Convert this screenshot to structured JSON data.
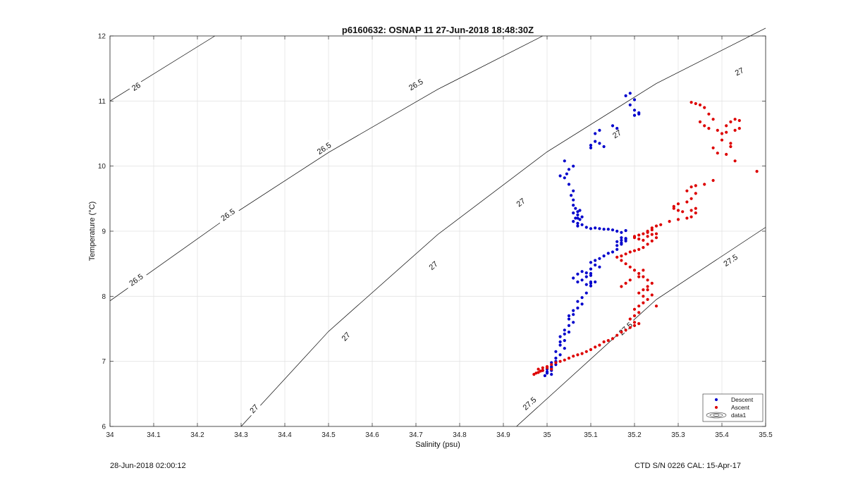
{
  "footer": {
    "timestamp": "28-Jun-2018 02:00:12",
    "instrument": "CTD S/N 0226  CAL: 15-Apr-17"
  },
  "chart_data": {
    "type": "scatter",
    "title": "p6160632: OSNAP 11 27-Jun-2018 18:48:30Z",
    "xlabel": "Salinity (psu)",
    "ylabel": "Temperature (°C)",
    "xlim": [
      34,
      35.5
    ],
    "ylim": [
      6,
      12
    ],
    "grid": true,
    "x_ticks": [
      "34",
      "34.1",
      "34.2",
      "34.3",
      "34.4",
      "34.5",
      "34.6",
      "34.7",
      "34.8",
      "34.9",
      "35",
      "35.1",
      "35.2",
      "35.3",
      "35.4",
      "35.5"
    ],
    "y_ticks": [
      "6",
      "7",
      "8",
      "9",
      "10",
      "11",
      "12"
    ],
    "legend_position": "bottom-right",
    "legend": [
      "Descent",
      "Ascent",
      "data1"
    ],
    "colors": {
      "descent": "#0000cc",
      "ascent": "#dd0000",
      "contour": "#000000"
    },
    "contours": [
      {
        "label": "26",
        "points": [
          [
            34.0,
            11.0
          ],
          [
            34.24,
            12.0
          ]
        ],
        "label_positions": [
          [
            34.06,
            11.22
          ]
        ]
      },
      {
        "label": "26.5",
        "points": [
          [
            34.0,
            7.93
          ],
          [
            34.25,
            9.12
          ],
          [
            34.5,
            10.21
          ],
          [
            34.75,
            11.18
          ],
          [
            34.99,
            12.0
          ]
        ],
        "label_positions": [
          [
            34.06,
            8.25
          ],
          [
            34.27,
            9.25
          ],
          [
            34.49,
            10.27
          ],
          [
            34.7,
            11.25
          ]
        ]
      },
      {
        "label": "27",
        "points": [
          [
            34.3,
            6.0
          ],
          [
            34.5,
            7.46
          ],
          [
            34.75,
            8.95
          ],
          [
            35.0,
            10.22
          ],
          [
            35.25,
            11.27
          ],
          [
            35.5,
            12.12
          ]
        ],
        "label_positions": [
          [
            34.33,
            6.27
          ],
          [
            34.54,
            7.38
          ],
          [
            34.74,
            8.47
          ],
          [
            34.94,
            9.44
          ],
          [
            35.16,
            10.49
          ],
          [
            35.44,
            11.45
          ]
        ]
      },
      {
        "label": "27.5",
        "points": [
          [
            34.93,
            6.0
          ],
          [
            35.25,
            7.95
          ],
          [
            35.5,
            9.06
          ]
        ],
        "label_positions": [
          [
            34.96,
            6.35
          ],
          [
            35.18,
            7.5
          ],
          [
            35.42,
            8.55
          ]
        ]
      }
    ],
    "series": [
      {
        "name": "Descent",
        "marker": "dot",
        "x": [
          35.19,
          35.2,
          35.19,
          35.18,
          35.2,
          35.21,
          35.2,
          35.21,
          35.16,
          35.15,
          35.13,
          35.12,
          35.11,
          35.1,
          35.11,
          35.12,
          35.1,
          35.05,
          35.06,
          35.04,
          35.03,
          35.04,
          35.045,
          35.05,
          35.06,
          35.055,
          35.06,
          35.06,
          35.065,
          35.07,
          35.06,
          35.07,
          35.065,
          35.075,
          35.06,
          35.07,
          35.08,
          35.075,
          35.07,
          35.07,
          35.08,
          35.09,
          35.1,
          35.11,
          35.12,
          35.13,
          35.14,
          35.15,
          35.16,
          35.17,
          35.18,
          35.18,
          35.17,
          35.16,
          35.17,
          35.18,
          35.18,
          35.17,
          35.16,
          35.17,
          35.16,
          35.15,
          35.14,
          35.13,
          35.12,
          35.11,
          35.1,
          35.11,
          35.12,
          35.1,
          35.1,
          35.09,
          35.1,
          35.1,
          35.09,
          35.08,
          35.07,
          35.06,
          35.07,
          35.08,
          35.09,
          35.1,
          35.1,
          35.11,
          35.09,
          35.08,
          35.07,
          35.08,
          35.07,
          35.06,
          35.06,
          35.05,
          35.05,
          35.06,
          35.05,
          35.04,
          35.05,
          35.04,
          35.03,
          35.04,
          35.03,
          35.03,
          35.04,
          35.02,
          35.03,
          35.02,
          35.02,
          35.01,
          35.02,
          35.01,
          35.0,
          35.01,
          35.0,
          35.0,
          35.01,
          34.995,
          35.0,
          34.99,
          35.01
        ],
        "y": [
          11.12,
          11.02,
          10.94,
          11.08,
          10.86,
          10.82,
          10.78,
          10.8,
          10.58,
          10.62,
          10.3,
          10.35,
          10.5,
          10.28,
          10.38,
          10.55,
          10.32,
          9.95,
          10.0,
          10.08,
          9.85,
          9.82,
          9.88,
          9.72,
          9.62,
          9.55,
          9.48,
          9.4,
          9.35,
          9.3,
          9.28,
          9.25,
          9.2,
          9.32,
          9.15,
          9.2,
          9.22,
          9.18,
          9.12,
          9.08,
          9.1,
          9.06,
          9.04,
          9.05,
          9.04,
          9.03,
          9.03,
          9.02,
          9.0,
          8.98,
          9.01,
          8.88,
          8.86,
          8.84,
          8.82,
          8.85,
          8.89,
          8.8,
          8.78,
          8.9,
          8.72,
          8.68,
          8.66,
          8.62,
          8.58,
          8.55,
          8.52,
          8.48,
          8.45,
          8.42,
          8.35,
          8.3,
          8.22,
          8.16,
          8.18,
          8.25,
          8.22,
          8.28,
          8.34,
          8.38,
          8.36,
          8.32,
          8.2,
          8.22,
          8.05,
          7.98,
          7.92,
          7.88,
          7.82,
          7.78,
          7.72,
          7.7,
          7.65,
          7.6,
          7.55,
          7.48,
          7.45,
          7.42,
          7.38,
          7.32,
          7.3,
          7.25,
          7.2,
          7.15,
          7.1,
          7.05,
          7.0,
          6.98,
          6.95,
          6.92,
          6.88,
          6.86,
          6.84,
          6.82,
          6.8,
          6.78,
          6.82,
          6.86,
          6.9
        ]
      },
      {
        "name": "Ascent",
        "marker": "dot",
        "x": [
          35.33,
          35.34,
          35.35,
          35.36,
          35.37,
          35.38,
          35.35,
          35.36,
          35.37,
          35.39,
          35.4,
          35.41,
          35.42,
          35.43,
          35.44,
          35.4,
          35.38,
          35.39,
          35.41,
          35.42,
          35.43,
          35.42,
          35.41,
          35.44,
          35.48,
          35.43,
          35.38,
          35.36,
          35.34,
          35.33,
          35.32,
          35.34,
          35.33,
          35.32,
          35.3,
          35.29,
          35.29,
          35.3,
          35.31,
          35.33,
          35.34,
          35.34,
          35.33,
          35.32,
          35.3,
          35.28,
          35.26,
          35.25,
          35.24,
          35.24,
          35.23,
          35.23,
          35.22,
          35.21,
          35.2,
          35.2,
          35.21,
          35.22,
          35.23,
          35.24,
          35.25,
          35.25,
          35.24,
          35.23,
          35.22,
          35.21,
          35.2,
          35.19,
          35.18,
          35.17,
          35.16,
          35.17,
          35.18,
          35.19,
          35.2,
          35.21,
          35.22,
          35.23,
          35.24,
          35.23,
          35.22,
          35.21,
          35.22,
          35.23,
          35.22,
          35.21,
          35.2,
          35.21,
          35.2,
          35.19,
          35.2,
          35.21,
          35.2,
          35.19,
          35.18,
          35.17,
          35.16,
          35.15,
          35.14,
          35.13,
          35.12,
          35.11,
          35.1,
          35.09,
          35.08,
          35.07,
          35.06,
          35.05,
          35.04,
          35.03,
          35.02,
          35.01,
          35.0,
          34.99,
          34.98,
          34.985,
          34.975,
          34.97,
          34.98,
          34.99,
          35.0,
          35.01,
          35.17,
          35.18,
          35.19,
          35.21,
          35.23,
          35.24,
          35.25,
          35.22
        ],
        "y": [
          10.98,
          10.96,
          10.94,
          10.9,
          10.8,
          10.72,
          10.68,
          10.62,
          10.58,
          10.55,
          10.5,
          10.52,
          10.68,
          10.72,
          10.58,
          10.4,
          10.28,
          10.2,
          10.18,
          10.3,
          10.08,
          10.35,
          10.62,
          10.7,
          9.92,
          10.55,
          9.78,
          9.72,
          9.7,
          9.68,
          9.62,
          9.58,
          9.5,
          9.45,
          9.42,
          9.38,
          9.35,
          9.32,
          9.3,
          9.32,
          9.35,
          9.28,
          9.22,
          9.2,
          9.18,
          9.15,
          9.1,
          9.08,
          9.05,
          9.02,
          9.0,
          8.98,
          8.96,
          8.94,
          8.92,
          8.9,
          8.88,
          8.86,
          8.92,
          8.95,
          8.96,
          8.9,
          8.85,
          8.8,
          8.75,
          8.72,
          8.7,
          8.68,
          8.65,
          8.62,
          8.6,
          8.55,
          8.5,
          8.45,
          8.4,
          8.35,
          8.3,
          8.25,
          8.2,
          8.15,
          8.1,
          8.05,
          8.0,
          7.95,
          7.9,
          7.85,
          7.8,
          7.75,
          7.7,
          7.65,
          7.6,
          7.58,
          7.55,
          7.52,
          7.48,
          7.45,
          7.4,
          7.35,
          7.32,
          7.3,
          7.25,
          7.22,
          7.18,
          7.15,
          7.12,
          7.1,
          7.08,
          7.05,
          7.02,
          7.0,
          6.98,
          6.95,
          6.92,
          6.9,
          6.88,
          6.85,
          6.82,
          6.8,
          6.83,
          6.86,
          6.9,
          6.88,
          8.15,
          8.2,
          8.25,
          8.3,
          8.1,
          8.02,
          7.85,
          8.4
        ]
      }
    ]
  }
}
